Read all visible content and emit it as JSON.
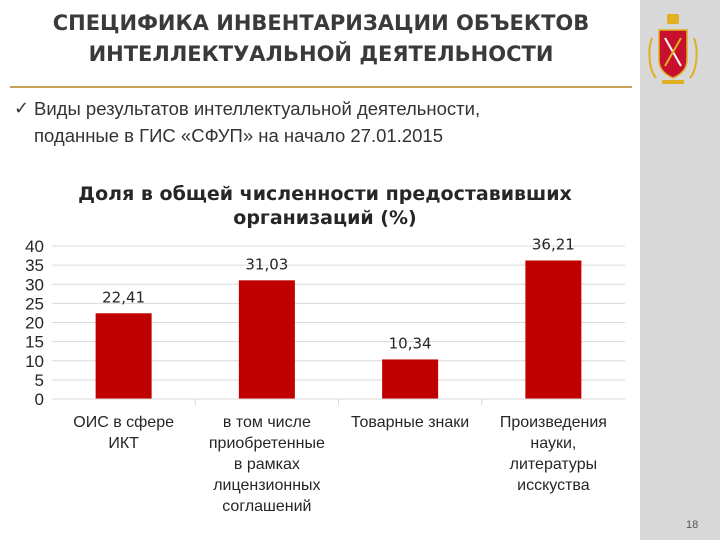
{
  "slide": {
    "title_line1": "СПЕЦИФИКА ИНВЕНТАРИЗАЦИИ ОБЪЕКТОВ",
    "title_line2": "ИНТЕЛЛЕКТУАЛЬНОЙ ДЕЯТЕЛЬНОСТИ",
    "bullet_check": "ü",
    "bullet_line1": "Виды результатов интеллектуальной деятельности,",
    "bullet_line2": "поданные в ГИС «СФУП» на начало 27.01.2015",
    "page_number": "18"
  },
  "colors": {
    "bar": "#c00000",
    "accent_rule": "#c8a15a",
    "side_strip": "#d8d8d8",
    "emblem_red": "#c8102e",
    "emblem_gold": "#e0b020"
  },
  "emblem": {
    "icon": "saint-petersburg-coat-of-arms-icon"
  },
  "chart_data": {
    "type": "bar",
    "title_lines": [
      "Доля в общей численности предоставивших",
      "организаций (%)"
    ],
    "categories": [
      [
        "ОИС в сфере",
        "ИКТ"
      ],
      [
        "в том числе",
        "приобретенные",
        "в рамках",
        "лицензионных",
        "соглашений"
      ],
      [
        "Товарные знаки"
      ],
      [
        "Произведения",
        "науки,",
        "литературы",
        "исскуства"
      ]
    ],
    "values": [
      22.41,
      31.03,
      10.34,
      36.21
    ],
    "value_labels": [
      "22,41",
      "31,03",
      "10,34",
      "36,21"
    ],
    "y_ticks": [
      "0",
      "5",
      "10",
      "15",
      "20",
      "25",
      "30",
      "35",
      "40"
    ],
    "ylim": [
      0,
      40
    ],
    "grid": true
  }
}
